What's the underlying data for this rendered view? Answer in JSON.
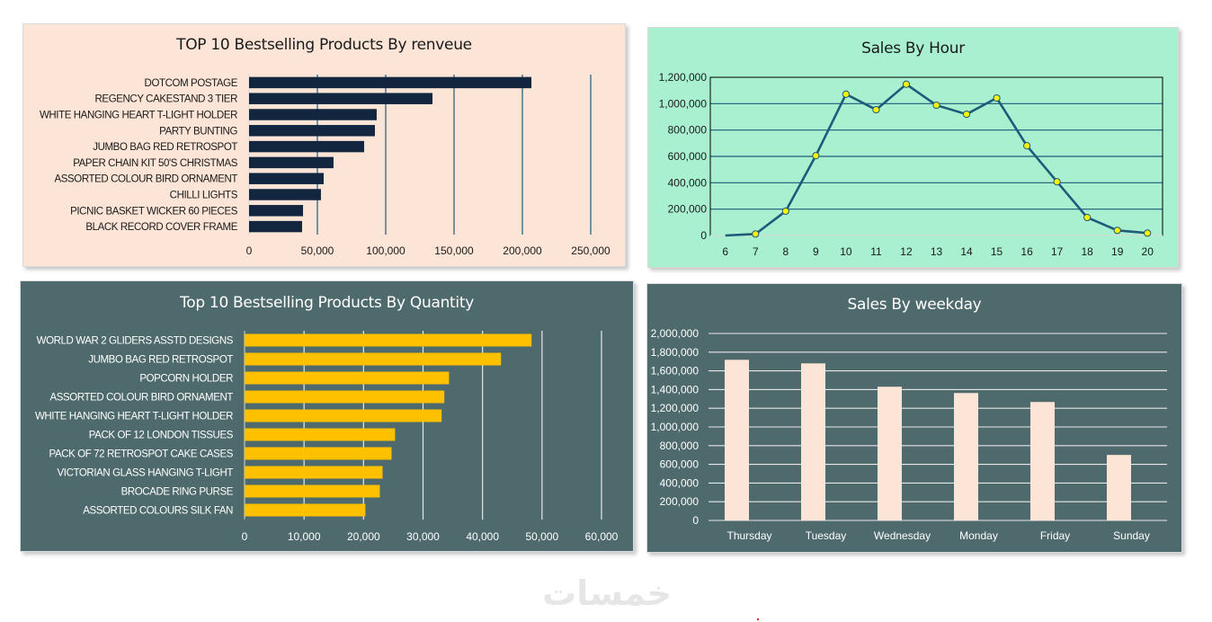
{
  "dashboard": {
    "watermark": "خمسات"
  },
  "colors": {
    "revenue_bg": "#fce4d6",
    "revenue_bar": "#12263f",
    "revenue_grid": "#1f5a7a",
    "hour_bg": "#a9f0d1",
    "hour_line": "#1f5a7a",
    "hour_marker": "#f5f500",
    "qty_bg": "#4e6a6c",
    "qty_bar": "#ffc000",
    "weekday_bar": "#fce4d6"
  },
  "chart_data": [
    {
      "id": "revenue",
      "type": "bar",
      "orientation": "horizontal",
      "title": "TOP 10 Bestselling Products By renveue",
      "xlabel": "",
      "ylabel": "",
      "categories": [
        "DOTCOM POSTAGE",
        "REGENCY CAKESTAND 3 TIER",
        "WHITE HANGING HEART T-LIGHT HOLDER",
        "PARTY BUNTING",
        "JUMBO BAG RED RETROSPOT",
        "PAPER CHAIN KIT 50'S CHRISTMAS",
        "ASSORTED COLOUR BIRD ORNAMENT",
        "CHILLI LIGHTS",
        "PICNIC BASKET WICKER 60 PIECES",
        "BLACK RECORD COVER FRAME"
      ],
      "values": [
        206600,
        134200,
        93400,
        92100,
        84200,
        61800,
        54600,
        52600,
        39500,
        38800
      ],
      "xlim": [
        0,
        250000
      ],
      "xticks": [
        0,
        50000,
        100000,
        150000,
        200000,
        250000
      ],
      "xtick_labels": [
        "0",
        "50,000",
        "100,000",
        "150,000",
        "200,000",
        "250,000"
      ],
      "grid": "vertical",
      "legend": "none"
    },
    {
      "id": "hour",
      "type": "line",
      "title": "Sales By Hour",
      "xlabel": "",
      "ylabel": "",
      "x": [
        "6",
        "7",
        "8",
        "9",
        "10",
        "11",
        "12",
        "13",
        "14",
        "15",
        "16",
        "17",
        "18",
        "19",
        "20"
      ],
      "values": [
        0,
        11400,
        184400,
        605700,
        1072000,
        954000,
        1147600,
        988200,
        919900,
        1042900,
        680800,
        407600,
        136600,
        38700,
        18200
      ],
      "markers": [
        false,
        true,
        true,
        true,
        true,
        true,
        true,
        true,
        true,
        true,
        true,
        true,
        true,
        true,
        true
      ],
      "ylim": [
        0,
        1200000
      ],
      "yticks": [
        0,
        200000,
        400000,
        600000,
        800000,
        1000000,
        1200000
      ],
      "ytick_labels": [
        "0",
        "200,000",
        "400,000",
        "600,000",
        "800,000",
        "1,000,000",
        "1,200,000"
      ],
      "grid": "horizontal",
      "legend": "none"
    },
    {
      "id": "quantity",
      "type": "bar",
      "orientation": "horizontal",
      "title": "Top 10 Bestselling Products By Quantity",
      "xlabel": "",
      "ylabel": "",
      "categories": [
        "WORLD WAR 2 GLIDERS ASSTD DESIGNS",
        "JUMBO BAG RED RETROSPOT",
        "POPCORN HOLDER",
        "ASSORTED COLOUR BIRD ORNAMENT",
        "WHITE HANGING HEART T-LIGHT HOLDER",
        "PACK OF 12 LONDON TISSUES",
        "PACK OF 72 RETROSPOT CAKE CASES",
        "VICTORIAN GLASS HANGING T-LIGHT",
        "BROCADE RING PURSE",
        "ASSORTED COLOURS SILK FAN"
      ],
      "values": [
        48240,
        43110,
        34370,
        33580,
        33120,
        25300,
        24710,
        23200,
        22740,
        20310
      ],
      "xlim": [
        0,
        60000
      ],
      "xticks": [
        0,
        10000,
        20000,
        30000,
        40000,
        50000,
        60000
      ],
      "xtick_labels": [
        "0",
        "10,000",
        "20,000",
        "30,000",
        "40,000",
        "50,000",
        "60,000"
      ],
      "grid": "vertical",
      "legend": "none"
    },
    {
      "id": "weekday",
      "type": "bar",
      "orientation": "vertical",
      "title": "Sales By weekday",
      "xlabel": "",
      "ylabel": "",
      "categories": [
        "Thursday",
        "Tuesday",
        "Wednesday",
        "Monday",
        "Friday",
        "Sunday"
      ],
      "values": [
        1718400,
        1680000,
        1430400,
        1363200,
        1267200,
        700800
      ],
      "ylim": [
        0,
        2000000
      ],
      "yticks": [
        0,
        200000,
        400000,
        600000,
        800000,
        1000000,
        1200000,
        1400000,
        1600000,
        1800000,
        2000000
      ],
      "ytick_labels": [
        "0",
        "200,000",
        "400,000",
        "600,000",
        "800,000",
        "1,000,000",
        "1,200,000",
        "1,400,000",
        "1,600,000",
        "1,800,000",
        "2,000,000"
      ],
      "grid": "horizontal",
      "legend": "none"
    }
  ]
}
